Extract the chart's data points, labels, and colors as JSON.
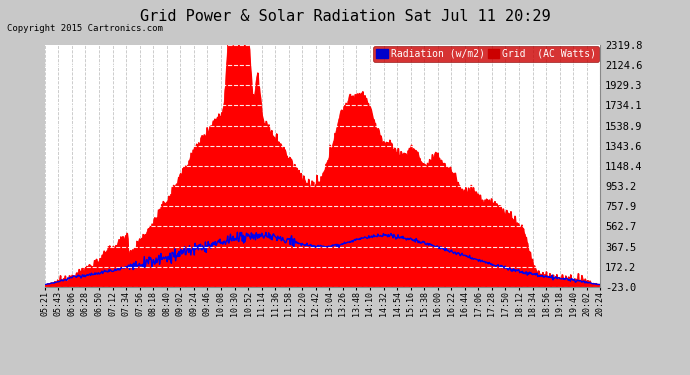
{
  "title": "Grid Power & Solar Radiation Sat Jul 11 20:29",
  "copyright": "Copyright 2015 Cartronics.com",
  "bg_color": "#c8c8c8",
  "plot_bg_color": "#ffffff",
  "grid_color": "#aaaaaa",
  "title_color": "#000000",
  "title_fontsize": 11,
  "yticks": [
    -23.0,
    172.2,
    367.5,
    562.7,
    757.9,
    953.2,
    1148.4,
    1343.6,
    1538.9,
    1734.1,
    1929.3,
    2124.6,
    2319.8
  ],
  "ymin": -23.0,
  "ymax": 2319.8,
  "red_color": "#ff0000",
  "blue_color": "#0000ee",
  "xtick_labels": [
    "05:21",
    "05:43",
    "06:06",
    "06:28",
    "06:50",
    "07:12",
    "07:34",
    "07:56",
    "08:18",
    "08:40",
    "09:02",
    "09:24",
    "09:46",
    "10:08",
    "10:30",
    "10:52",
    "11:14",
    "11:36",
    "11:58",
    "12:20",
    "12:42",
    "13:04",
    "13:26",
    "13:48",
    "14:10",
    "14:32",
    "14:54",
    "15:16",
    "15:38",
    "16:00",
    "16:22",
    "16:44",
    "17:06",
    "17:28",
    "17:50",
    "18:12",
    "18:34",
    "18:56",
    "19:18",
    "19:40",
    "20:02",
    "20:24"
  ],
  "num_points": 800
}
